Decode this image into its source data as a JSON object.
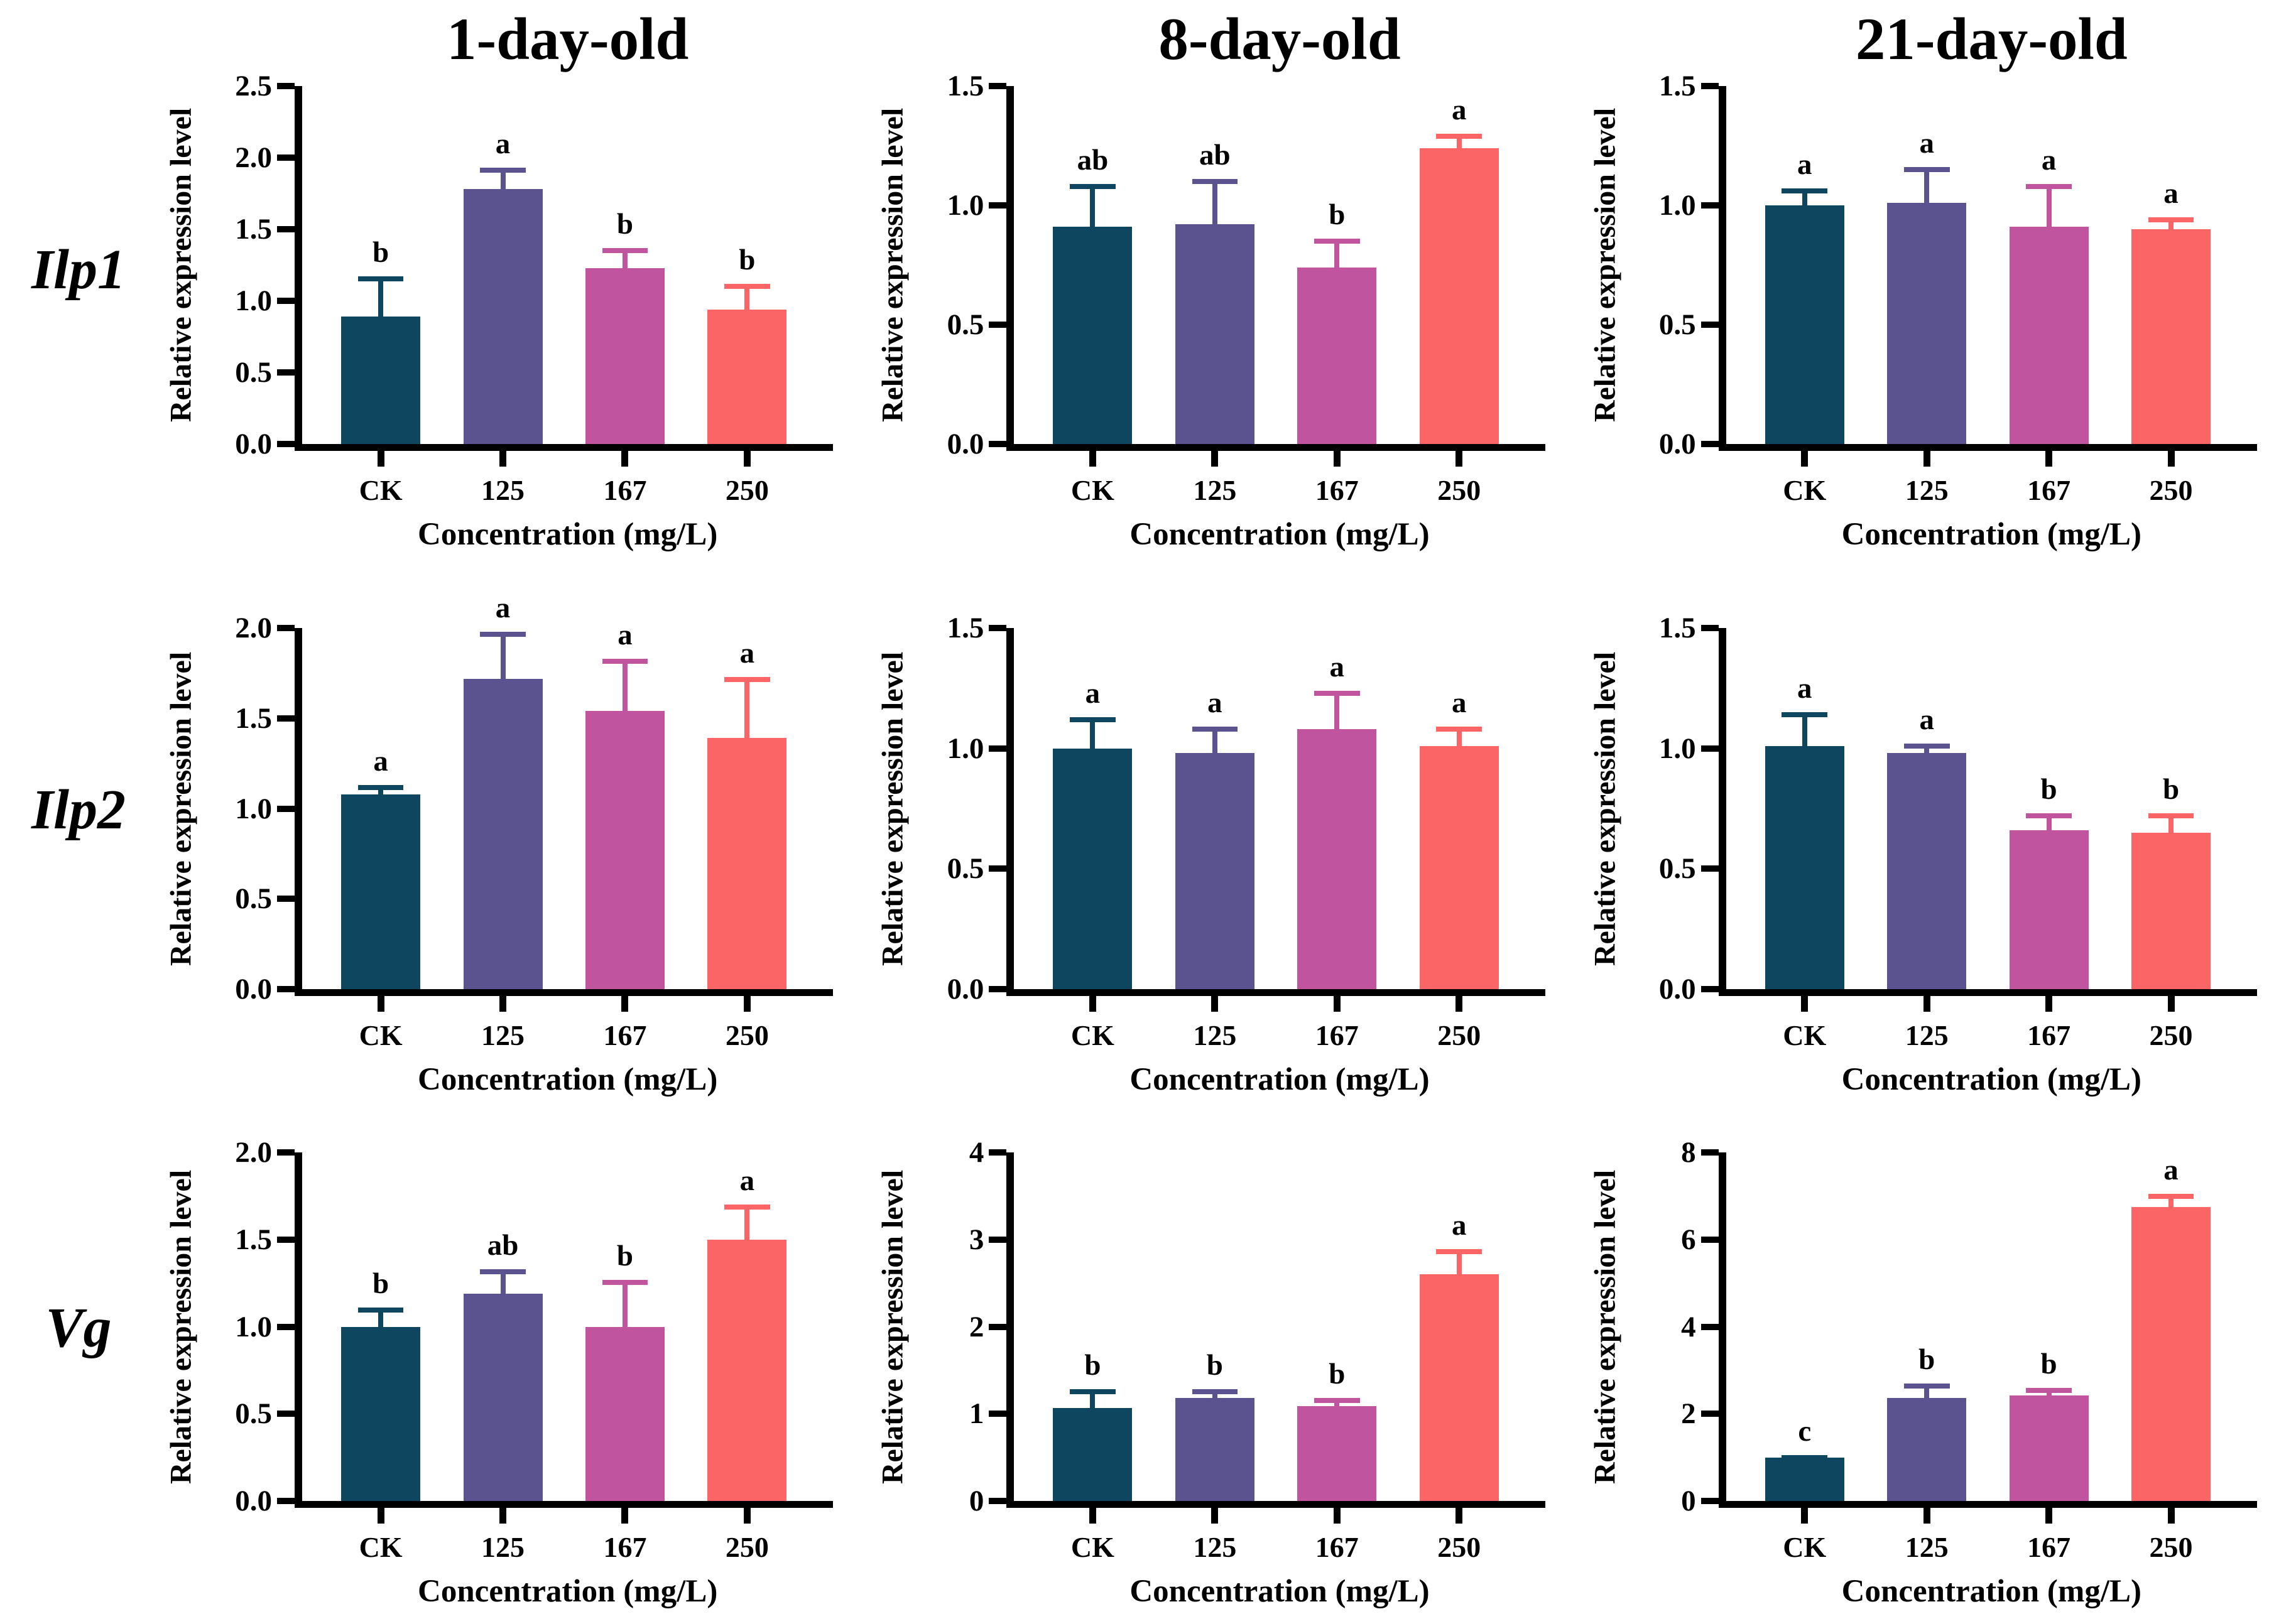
{
  "figure": {
    "background": "#ffffff",
    "row_labels": [
      "Ilp1",
      "Ilp2",
      "Vg"
    ],
    "col_titles": [
      "1-day-old",
      "8-day-old",
      "21-day-old"
    ],
    "ylabel": "Relative expression level",
    "xlabel": "Concentration (mg/L)",
    "categories": [
      "CK",
      "125",
      "167",
      "250"
    ],
    "bar_colors": [
      "#0e465f",
      "#5b538f",
      "#c0549f",
      "#fb6565"
    ],
    "axis_color": "#000000",
    "letter_color": "#000000"
  },
  "chart_data": [
    {
      "type": "bar",
      "gene": "Ilp1",
      "age": "1-day-old",
      "title": "1-day-old",
      "xlabel": "Concentration (mg/L)",
      "ylabel": "Relative expression level",
      "categories": [
        "CK",
        "125",
        "167",
        "250"
      ],
      "values": [
        0.89,
        1.78,
        1.23,
        0.94
      ],
      "errors": [
        0.28,
        0.15,
        0.14,
        0.18
      ],
      "letters": [
        "b",
        "a",
        "b",
        "b"
      ],
      "ylim": [
        0,
        2.5
      ],
      "yticks": [
        0,
        0.5,
        1.0,
        1.5,
        2.0,
        2.5
      ],
      "ytick_labels": [
        "0.0",
        "0.5",
        "1.0",
        "1.5",
        "2.0",
        "2.5"
      ],
      "grid": "off",
      "legend": "none"
    },
    {
      "type": "bar",
      "gene": "Ilp1",
      "age": "8-day-old",
      "title": "8-day-old",
      "xlabel": "Concentration (mg/L)",
      "ylabel": "Relative expression level",
      "categories": [
        "CK",
        "125",
        "167",
        "250"
      ],
      "values": [
        0.91,
        0.92,
        0.74,
        1.24
      ],
      "errors": [
        0.18,
        0.19,
        0.12,
        0.06
      ],
      "letters": [
        "ab",
        "ab",
        "b",
        "a"
      ],
      "ylim": [
        0,
        1.5
      ],
      "yticks": [
        0,
        0.5,
        1.0,
        1.5
      ],
      "ytick_labels": [
        "0.0",
        "0.5",
        "1.0",
        "1.5"
      ],
      "grid": "off",
      "legend": "none"
    },
    {
      "type": "bar",
      "gene": "Ilp1",
      "age": "21-day-old",
      "title": "21-day-old",
      "xlabel": "Concentration (mg/L)",
      "ylabel": "Relative expression level",
      "categories": [
        "CK",
        "125",
        "167",
        "250"
      ],
      "values": [
        1.0,
        1.01,
        0.91,
        0.9
      ],
      "errors": [
        0.07,
        0.15,
        0.18,
        0.05
      ],
      "letters": [
        "a",
        "a",
        "a",
        "a"
      ],
      "ylim": [
        0,
        1.5
      ],
      "yticks": [
        0,
        0.5,
        1.0,
        1.5
      ],
      "ytick_labels": [
        "0.0",
        "0.5",
        "1.0",
        "1.5"
      ],
      "grid": "off",
      "legend": "none"
    },
    {
      "type": "bar",
      "gene": "Ilp2",
      "age": "1-day-old",
      "title": "",
      "xlabel": "Concentration (mg/L)",
      "ylabel": "Relative expression level",
      "categories": [
        "CK",
        "125",
        "167",
        "250"
      ],
      "values": [
        1.08,
        1.72,
        1.54,
        1.39
      ],
      "errors": [
        0.05,
        0.26,
        0.29,
        0.34
      ],
      "letters": [
        "a",
        "a",
        "a",
        "a"
      ],
      "ylim": [
        0,
        2.0
      ],
      "yticks": [
        0,
        0.5,
        1.0,
        1.5,
        2.0
      ],
      "ytick_labels": [
        "0.0",
        "0.5",
        "1.0",
        "1.5",
        "2.0"
      ],
      "grid": "off",
      "legend": "none"
    },
    {
      "type": "bar",
      "gene": "Ilp2",
      "age": "8-day-old",
      "title": "",
      "xlabel": "Concentration (mg/L)",
      "ylabel": "Relative expression level",
      "categories": [
        "CK",
        "125",
        "167",
        "250"
      ],
      "values": [
        1.0,
        0.98,
        1.08,
        1.01
      ],
      "errors": [
        0.13,
        0.11,
        0.16,
        0.08
      ],
      "letters": [
        "a",
        "a",
        "a",
        "a"
      ],
      "ylim": [
        0,
        1.5
      ],
      "yticks": [
        0,
        0.5,
        1.0,
        1.5
      ],
      "ytick_labels": [
        "0.0",
        "0.5",
        "1.0",
        "1.5"
      ],
      "grid": "off",
      "legend": "none"
    },
    {
      "type": "bar",
      "gene": "Ilp2",
      "age": "21-day-old",
      "title": "",
      "xlabel": "Concentration (mg/L)",
      "ylabel": "Relative expression level",
      "categories": [
        "CK",
        "125",
        "167",
        "250"
      ],
      "values": [
        1.01,
        0.98,
        0.66,
        0.65
      ],
      "errors": [
        0.14,
        0.04,
        0.07,
        0.08
      ],
      "letters": [
        "a",
        "a",
        "b",
        "b"
      ],
      "ylim": [
        0,
        1.5
      ],
      "yticks": [
        0,
        0.5,
        1.0,
        1.5
      ],
      "ytick_labels": [
        "0.0",
        "0.5",
        "1.0",
        "1.5"
      ],
      "grid": "off",
      "legend": "none"
    },
    {
      "type": "bar",
      "gene": "Vg",
      "age": "1-day-old",
      "title": "",
      "xlabel": "Concentration (mg/L)",
      "ylabel": "Relative expression level",
      "categories": [
        "CK",
        "125",
        "167",
        "250"
      ],
      "values": [
        1.0,
        1.19,
        1.0,
        1.5
      ],
      "errors": [
        0.11,
        0.14,
        0.27,
        0.2
      ],
      "letters": [
        "b",
        "ab",
        "b",
        "a"
      ],
      "ylim": [
        0,
        2.0
      ],
      "yticks": [
        0,
        0.5,
        1.0,
        1.5,
        2.0
      ],
      "ytick_labels": [
        "0.0",
        "0.5",
        "1.0",
        "1.5",
        "2.0"
      ],
      "grid": "off",
      "legend": "none"
    },
    {
      "type": "bar",
      "gene": "Vg",
      "age": "8-day-old",
      "title": "",
      "xlabel": "Concentration (mg/L)",
      "ylabel": "Relative expression level",
      "categories": [
        "CK",
        "125",
        "167",
        "250"
      ],
      "values": [
        1.07,
        1.18,
        1.09,
        2.6
      ],
      "errors": [
        0.21,
        0.1,
        0.09,
        0.29
      ],
      "letters": [
        "b",
        "b",
        "b",
        "a"
      ],
      "ylim": [
        0,
        4
      ],
      "yticks": [
        0,
        1,
        2,
        3,
        4
      ],
      "ytick_labels": [
        "0",
        "1",
        "2",
        "3",
        "4"
      ],
      "grid": "off",
      "legend": "none"
    },
    {
      "type": "bar",
      "gene": "Vg",
      "age": "21-day-old",
      "title": "",
      "xlabel": "Concentration (mg/L)",
      "ylabel": "Relative expression level",
      "categories": [
        "CK",
        "125",
        "167",
        "250"
      ],
      "values": [
        1.0,
        2.37,
        2.42,
        6.75
      ],
      "errors": [
        0.05,
        0.33,
        0.18,
        0.3
      ],
      "letters": [
        "c",
        "b",
        "b",
        "a"
      ],
      "ylim": [
        0,
        8
      ],
      "yticks": [
        0,
        2,
        4,
        6,
        8
      ],
      "ytick_labels": [
        "0",
        "2",
        "4",
        "6",
        "8"
      ],
      "grid": "off",
      "legend": "none"
    }
  ]
}
